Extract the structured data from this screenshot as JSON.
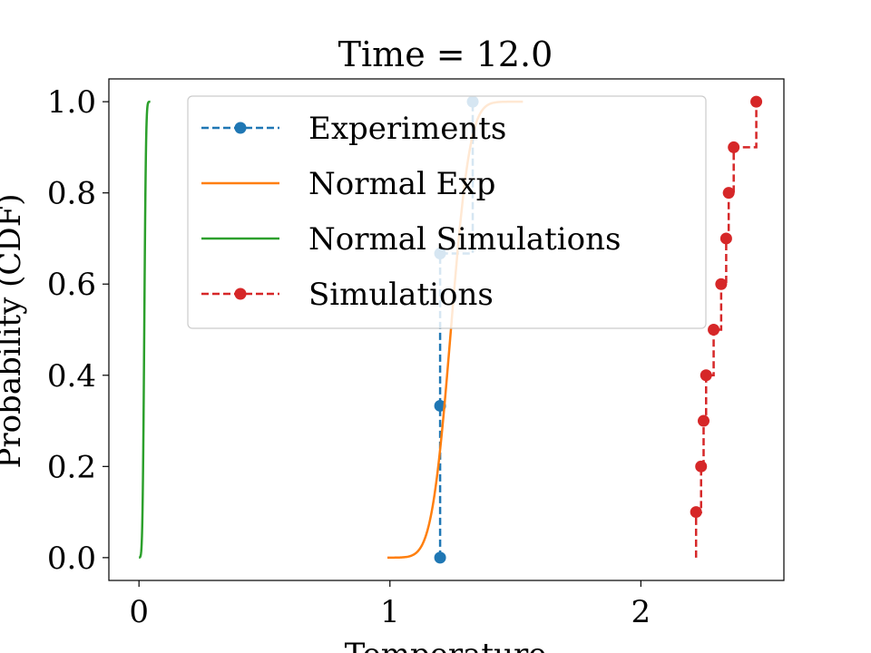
{
  "chart_data": {
    "type": "line",
    "title": "Time = 12.0",
    "xlabel": "Temperature",
    "ylabel": "Probability (CDF)",
    "xlim": [
      -0.12,
      2.57
    ],
    "ylim": [
      -0.05,
      1.05
    ],
    "xticks": [
      0,
      1,
      2
    ],
    "xtick_labels": [
      "0",
      "1",
      "2"
    ],
    "yticks": [
      0.0,
      0.2,
      0.4,
      0.6,
      0.8,
      1.0
    ],
    "ytick_labels": [
      "0.0",
      "0.2",
      "0.4",
      "0.6",
      "0.8",
      "1.0"
    ],
    "grid": false,
    "legend_position": "top-center",
    "series": [
      {
        "name": "Experiments",
        "color": "#1f77b4",
        "style": "step-dashed-markers",
        "x": [
          1.2,
          1.2,
          1.2,
          1.33
        ],
        "y": [
          0.0,
          0.333,
          0.667,
          1.0
        ]
      },
      {
        "name": "Normal Exp",
        "color": "#ff7f0e",
        "style": "solid",
        "distribution": {
          "type": "normal-cdf",
          "mean": 1.243,
          "std": 0.06,
          "x_range": [
            0.99,
            1.53
          ]
        }
      },
      {
        "name": "Normal Simulations",
        "color": "#2ca02c",
        "style": "solid",
        "distribution": {
          "type": "normal-cdf",
          "mean": 0.021,
          "std": 0.0055,
          "x_range": [
            0.0,
            0.045
          ]
        }
      },
      {
        "name": "Simulations",
        "color": "#d62728",
        "style": "step-dashed-markers",
        "x": [
          2.22,
          2.24,
          2.25,
          2.26,
          2.29,
          2.32,
          2.34,
          2.35,
          2.37,
          2.46
        ],
        "y": [
          0.1,
          0.2,
          0.3,
          0.4,
          0.5,
          0.6,
          0.7,
          0.8,
          0.9,
          1.0
        ],
        "start": [
          2.22,
          0.0
        ]
      }
    ]
  }
}
